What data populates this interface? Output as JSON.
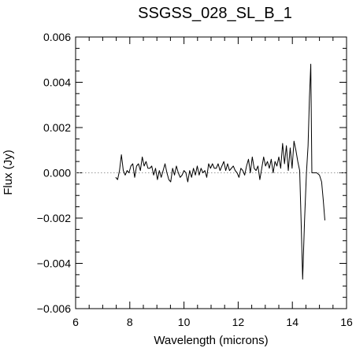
{
  "chart_data": {
    "type": "line",
    "title": "SSGSS_028_SL_B_1",
    "xlabel": "Wavelength (microns)",
    "ylabel": "Flux (Jy)",
    "xlim": [
      6,
      16
    ],
    "ylim": [
      -0.006,
      0.006
    ],
    "x_ticks": [
      6,
      8,
      10,
      12,
      14,
      16
    ],
    "x_tick_labels": [
      "6",
      "8",
      "10",
      "12",
      "14",
      "16"
    ],
    "y_ticks": [
      -0.006,
      -0.004,
      -0.002,
      0.0,
      0.002,
      0.004,
      0.006
    ],
    "y_tick_labels": [
      "−0.006",
      "−0.004",
      "−0.002",
      "0.000",
      "0.002",
      "0.004",
      "0.006"
    ],
    "grid": false,
    "reference_line": {
      "y": 0.0,
      "style": "dotted",
      "color": "#999999"
    },
    "series": [
      {
        "color": "#000000",
        "x": [
          7.48,
          7.55,
          7.62,
          7.69,
          7.76,
          7.83,
          7.9,
          7.97,
          8.04,
          8.11,
          8.18,
          8.25,
          8.32,
          8.39,
          8.46,
          8.53,
          8.6,
          8.67,
          8.74,
          8.81,
          8.88,
          8.95,
          9.02,
          9.09,
          9.16,
          9.23,
          9.3,
          9.37,
          9.44,
          9.51,
          9.58,
          9.65,
          9.72,
          9.79,
          9.86,
          9.93,
          10.0,
          10.07,
          10.14,
          10.21,
          10.28,
          10.35,
          10.42,
          10.49,
          10.56,
          10.63,
          10.7,
          10.77,
          10.84,
          10.91,
          10.98,
          11.05,
          11.12,
          11.19,
          11.26,
          11.33,
          11.4,
          11.47,
          11.54,
          11.61,
          11.68,
          11.75,
          11.82,
          11.89,
          11.96,
          12.03,
          12.1,
          12.17,
          12.24,
          12.31,
          12.38,
          12.45,
          12.52,
          12.59,
          12.66,
          12.73,
          12.8,
          12.87,
          12.94,
          13.01,
          13.08,
          13.15,
          13.22,
          13.29,
          13.36,
          13.43,
          13.5,
          13.57,
          13.64,
          13.71,
          13.78,
          13.85,
          13.92,
          13.99,
          14.06,
          14.13,
          14.2,
          14.27,
          14.32,
          14.38,
          14.45,
          14.52,
          14.58,
          14.63,
          14.68,
          14.72,
          14.8,
          14.9,
          15.0,
          15.08,
          15.14,
          15.2
        ],
        "y": [
          -0.0002,
          -0.0003,
          0.0001,
          0.0008,
          0.0001,
          -0.0001,
          0.0001,
          0.0,
          0.0003,
          0.0004,
          -0.0002,
          0.0003,
          0.0004,
          0.0001,
          0.0007,
          0.0003,
          0.0005,
          0.0002,
          0.0002,
          0.0003,
          -0.0001,
          0.0002,
          -0.0003,
          0.0001,
          -0.0002,
          0.0001,
          0.0004,
          0.0,
          -0.0003,
          -0.0004,
          0.0002,
          -0.0001,
          0.0003,
          0.0,
          -0.0002,
          -0.0001,
          0.0001,
          0.0,
          -0.0004,
          0.0001,
          -0.0002,
          0.0002,
          -0.0001,
          0.0003,
          -0.0001,
          0.0002,
          0.0,
          0.0001,
          -0.0002,
          0.0004,
          0.0002,
          0.0004,
          0.0002,
          0.0002,
          0.0004,
          0.0001,
          0.0003,
          0.0005,
          0.0001,
          0.0004,
          0.0001,
          0.0002,
          0.0003,
          0.0001,
          0.0,
          -0.0002,
          0.0002,
          0.0001,
          -0.0001,
          0.0003,
          0.0006,
          0.0,
          0.0007,
          0.0002,
          0.0001,
          0.0003,
          -0.0003,
          0.0002,
          0.0007,
          0.0003,
          0.0005,
          0.0002,
          0.0006,
          0.0,
          0.0005,
          0.0003,
          0.0007,
          0.0002,
          0.0013,
          0.0004,
          0.0012,
          0.0001,
          0.0011,
          0.0002,
          0.0014,
          0.001,
          0.0005,
          0.0001,
          -0.002,
          -0.0047,
          -0.0021,
          0.0,
          0.0012,
          0.0033,
          0.0048,
          0.0,
          0.0,
          0.0,
          -0.0001,
          -0.0004,
          -0.0012,
          -0.0021
        ]
      }
    ]
  }
}
